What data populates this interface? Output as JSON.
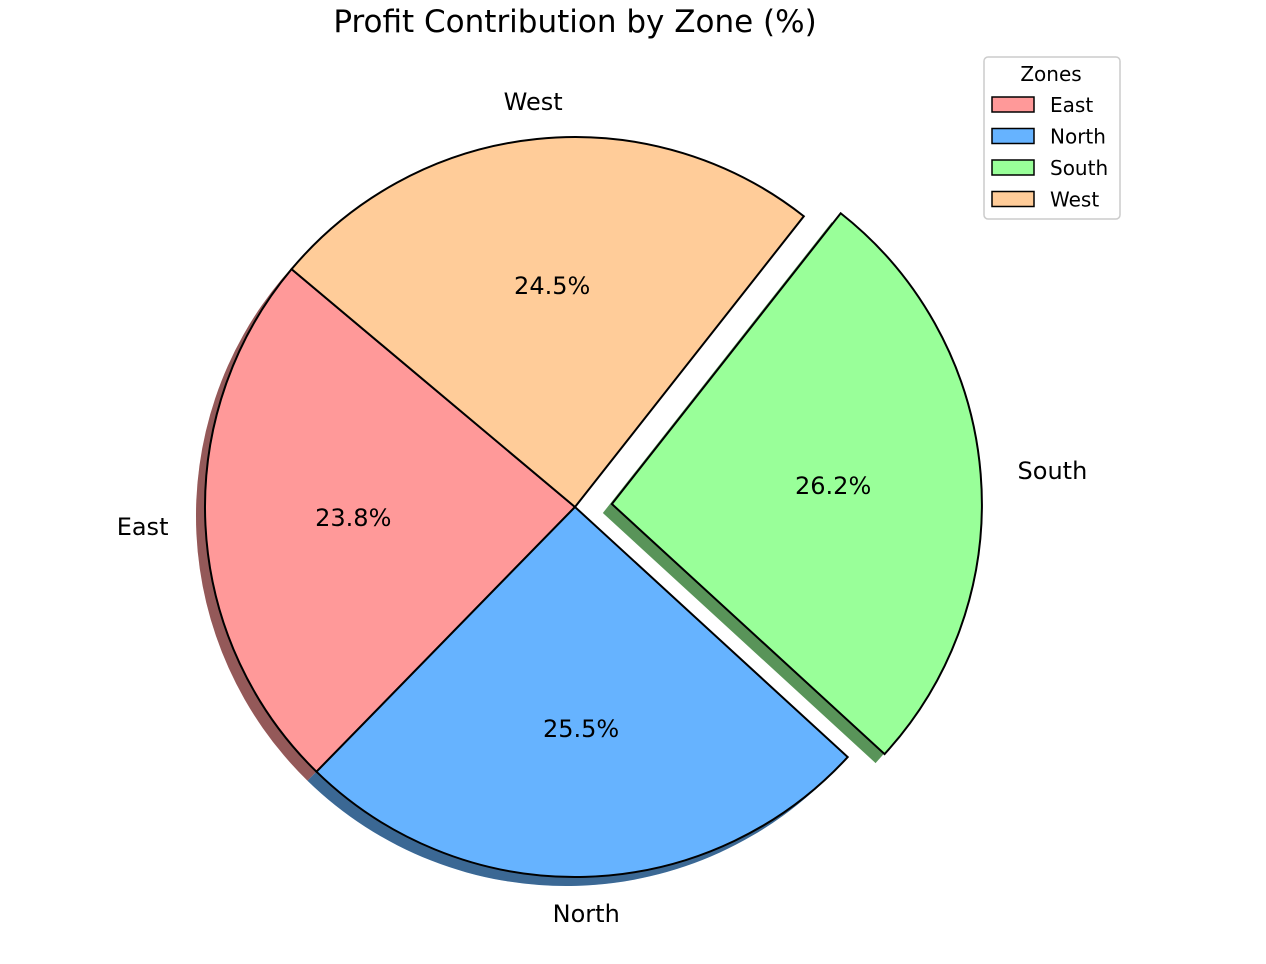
{
  "chart_data": {
    "type": "pie",
    "title": "Profit Contribution by Zone (%)",
    "categories": [
      "East",
      "North",
      "South",
      "West"
    ],
    "values": [
      23.8,
      25.5,
      26.2,
      24.5
    ],
    "value_labels": [
      "23.8%",
      "25.5%",
      "26.2%",
      "24.5%"
    ],
    "colors": [
      "#ff9999",
      "#66b3ff",
      "#99ff99",
      "#ffcc99"
    ],
    "exploded": [
      "South"
    ],
    "shadow": true,
    "start_angle_deg": 140,
    "legend": {
      "title": "Zones",
      "position": "top-right",
      "entries": [
        "East",
        "North",
        "South",
        "West"
      ]
    }
  }
}
